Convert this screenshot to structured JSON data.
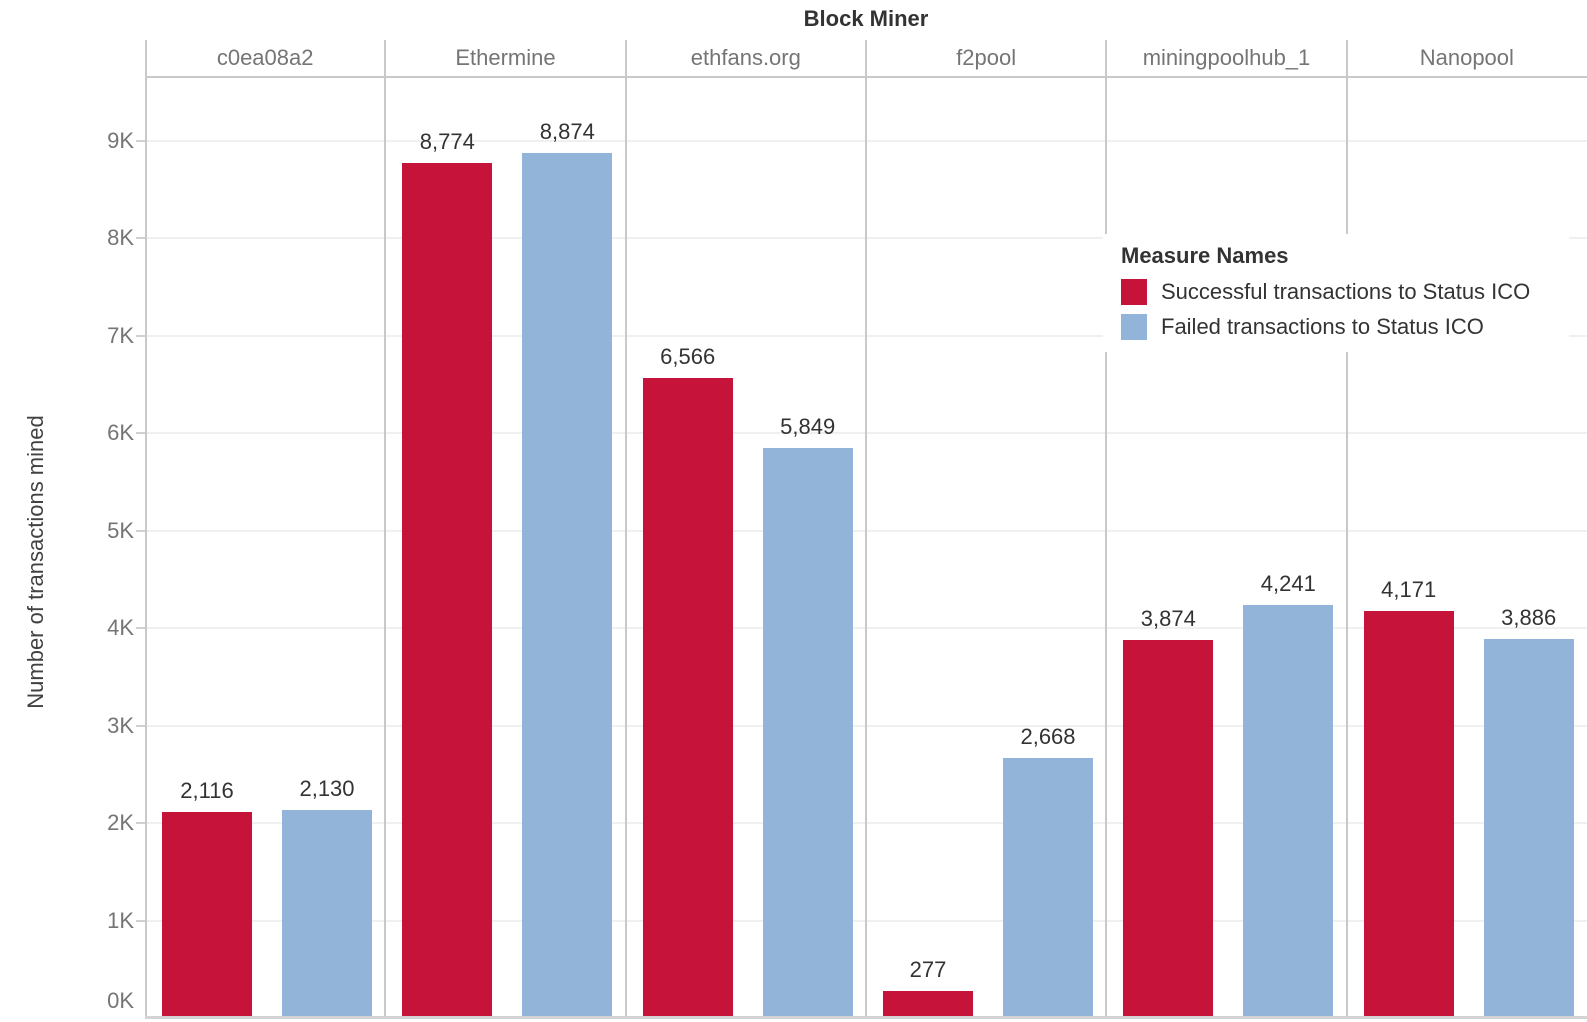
{
  "chart_data": {
    "type": "bar",
    "title": "Block Miner",
    "ylabel": "Number of transactions mined",
    "categories": [
      "c0ea08a2",
      "Ethermine",
      "ethfans.org",
      "f2pool",
      "miningpoolhub_1",
      "Nanopool"
    ],
    "series": [
      {
        "name": "Successful transactions to Status ICO",
        "color": "#c61339",
        "values": [
          2116,
          8774,
          6566,
          277,
          3874,
          4171
        ],
        "labels": [
          "2,116",
          "8,774",
          "6,566",
          "277",
          "3,874",
          "4,171"
        ]
      },
      {
        "name": "Failed transactions to Status ICO",
        "color": "#92b4d8",
        "values": [
          2130,
          8874,
          5849,
          2668,
          4241,
          3886
        ],
        "labels": [
          "2,130",
          "8,874",
          "5,849",
          "2,668",
          "4,241",
          "3,886"
        ]
      }
    ],
    "y_axis": {
      "tick_labels": [
        "0K",
        "1K",
        "2K",
        "3K",
        "4K",
        "5K",
        "6K",
        "7K",
        "8K",
        "9K"
      ],
      "tick_values": [
        0,
        1000,
        2000,
        3000,
        4000,
        5000,
        6000,
        7000,
        8000,
        9000
      ],
      "ylim": [
        0,
        9640
      ],
      "grid": true
    },
    "legend": {
      "title": "Measure Names",
      "position": "inside-right"
    }
  },
  "colors": {
    "success_red": "#c61339",
    "failed_blue": "#92b4d8",
    "axis_gray": "#c9c9c9",
    "grid_gray": "#f0f0f0",
    "text_dark": "#333333",
    "text_gray": "#757575"
  }
}
